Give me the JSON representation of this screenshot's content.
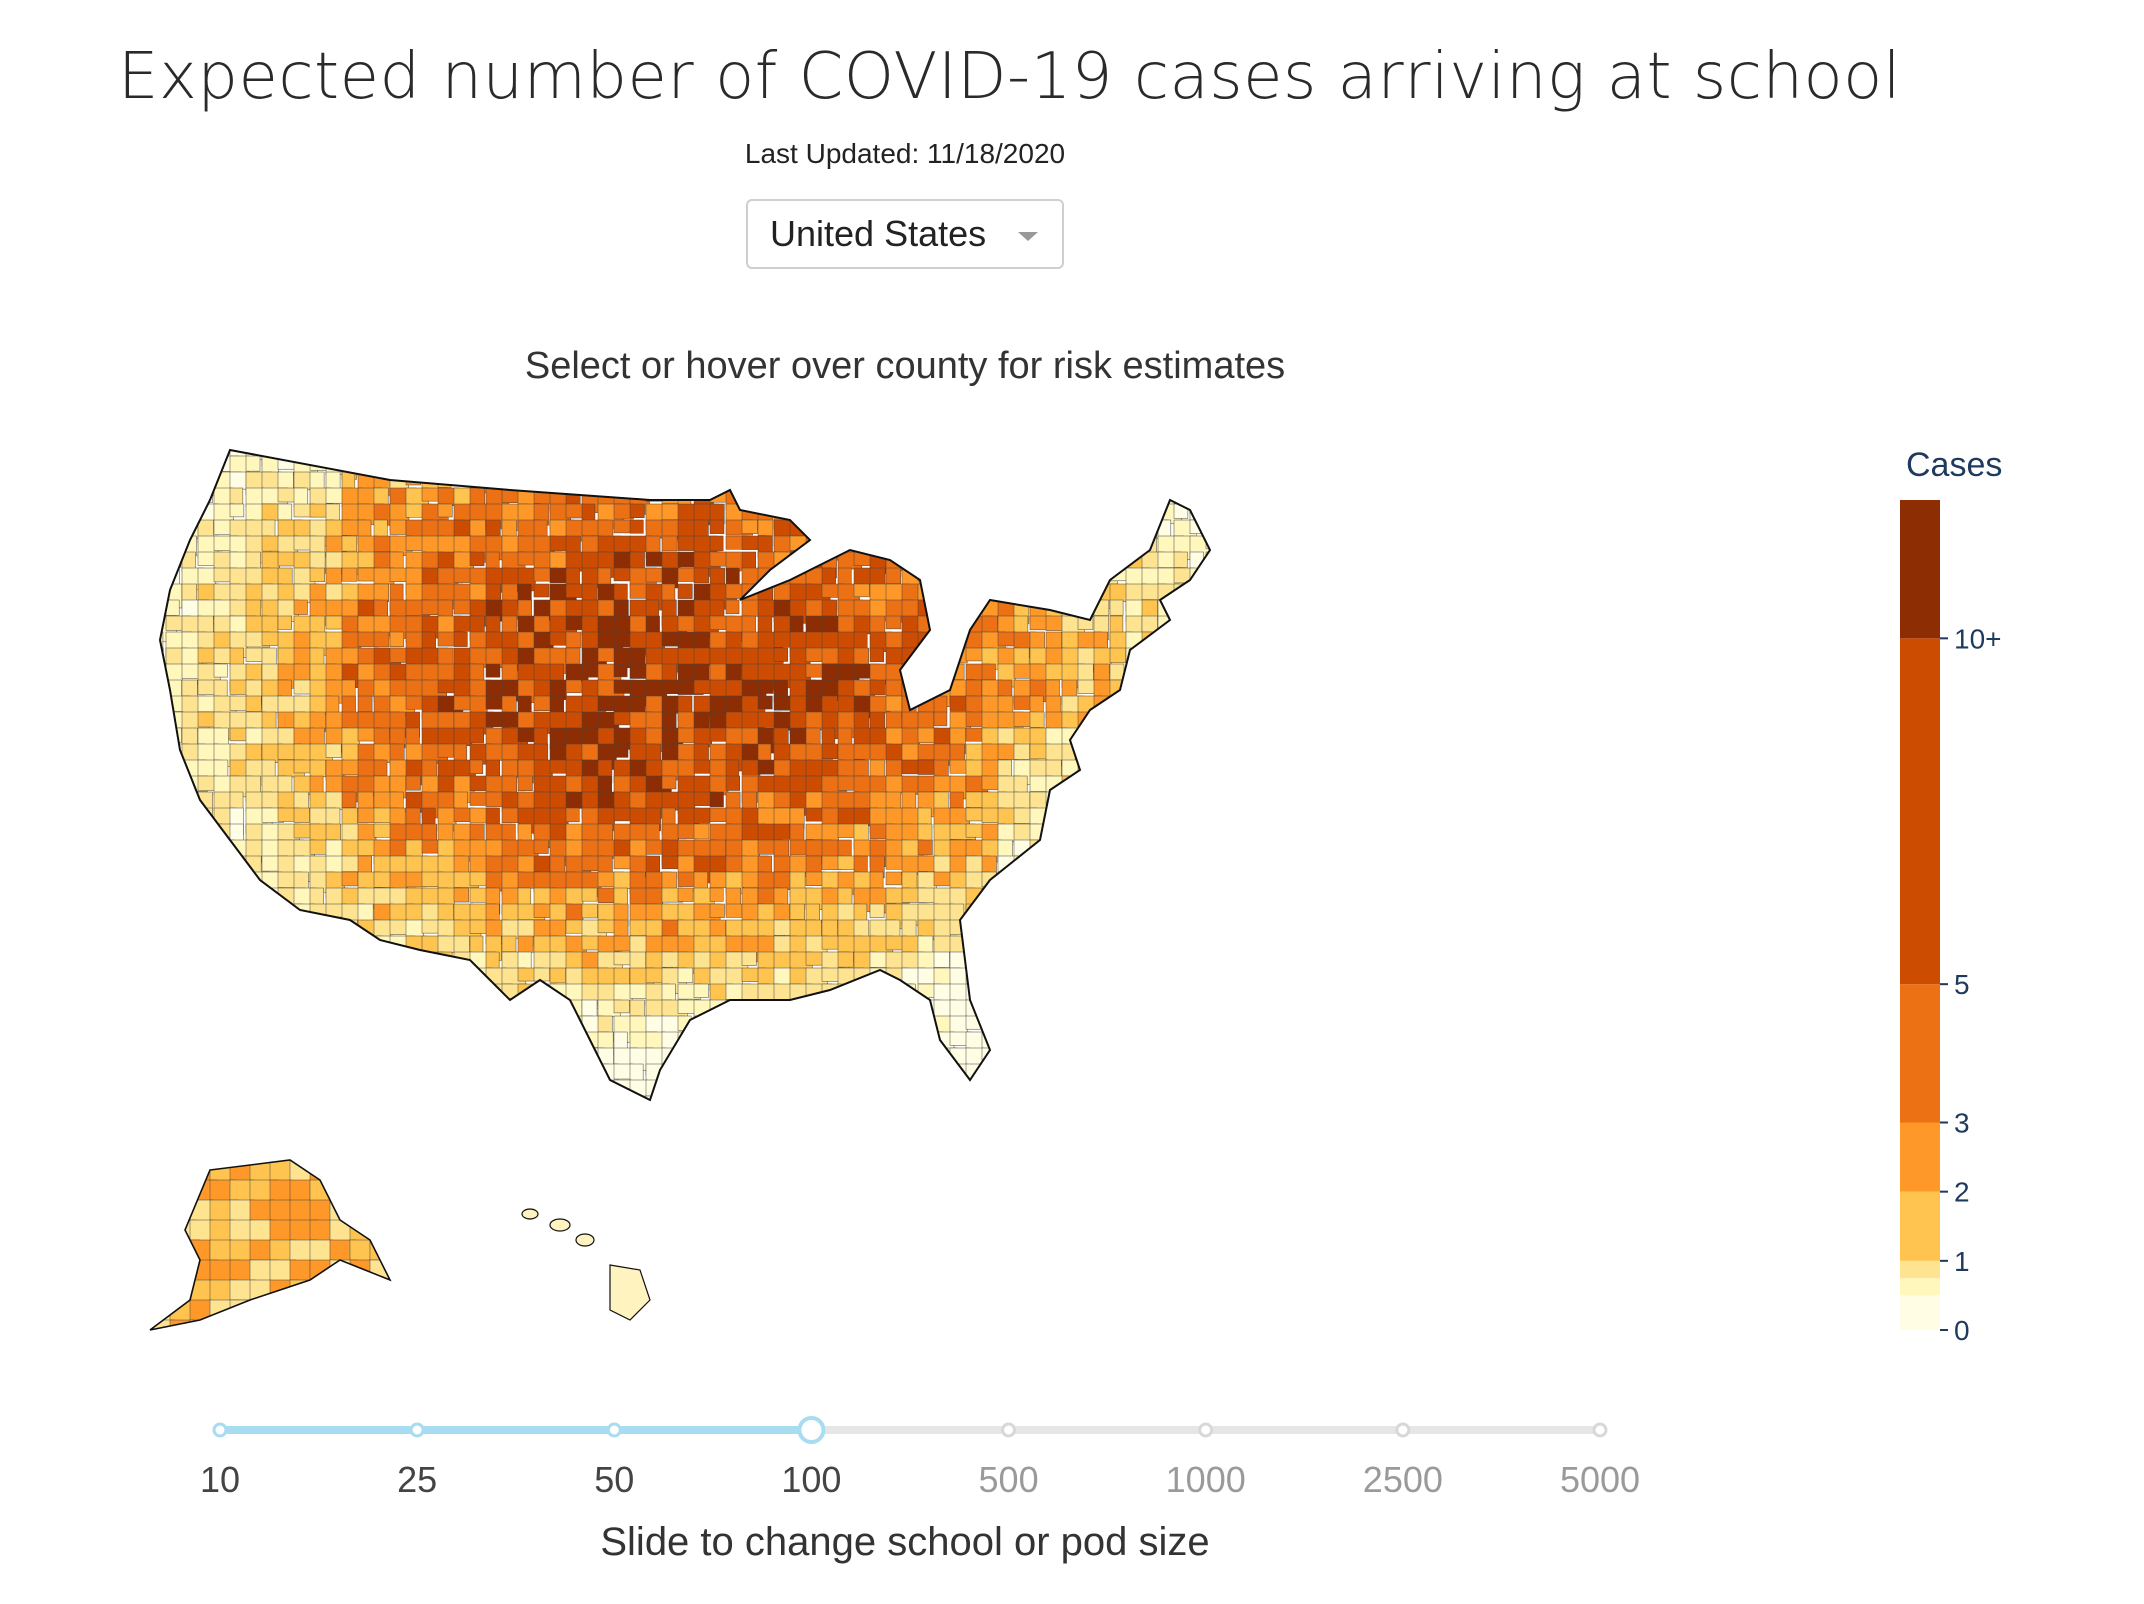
{
  "title": "Expected number of COVID-19 cases arriving at school",
  "last_updated": "Last Updated: 11/18/2020",
  "region_select": {
    "selected": "United States"
  },
  "map_instruction": "Select or hover over county for risk estimates",
  "legend": {
    "title": "Cases",
    "ticks": [
      "0",
      "1",
      "2",
      "3",
      "5",
      "10+"
    ],
    "bands": [
      {
        "from": 0,
        "to": 0.5,
        "color": "#fffee5"
      },
      {
        "from": 0.5,
        "to": 0.75,
        "color": "#fff7bc"
      },
      {
        "from": 0.75,
        "to": 1,
        "color": "#fee391"
      },
      {
        "from": 1,
        "to": 2,
        "color": "#fec44f"
      },
      {
        "from": 2,
        "to": 3,
        "color": "#fe9929"
      },
      {
        "from": 3,
        "to": 5,
        "color": "#ec7014"
      },
      {
        "from": 5,
        "to": 10,
        "color": "#cc4c02"
      },
      {
        "from": 10,
        "to": 12,
        "color": "#8c2d04"
      }
    ]
  },
  "slider": {
    "caption": "Slide to change school or pod size",
    "steps": [
      "10",
      "25",
      "50",
      "100",
      "500",
      "1000",
      "2500",
      "5000"
    ],
    "selected_index": 3,
    "active_color": "#a8dcf0",
    "inactive_color": "#e6e6e6"
  }
}
